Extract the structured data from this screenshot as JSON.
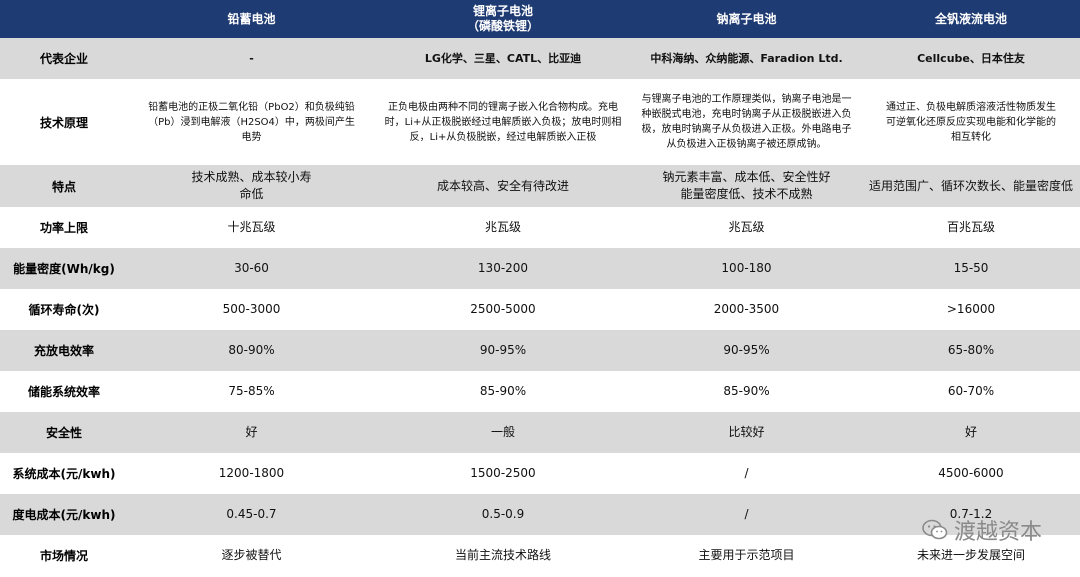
{
  "columns": [
    "",
    "铅蓄电池",
    "锂离子电池",
    "钠离子电池",
    "全钒液流电池"
  ],
  "column_subtitles": [
    "",
    "",
    "（磷酸铁锂）",
    "",
    ""
  ],
  "rows": [
    {
      "label": "代表企业",
      "cells": [
        "-",
        "LG化学、三星、CATL、比亚迪",
        "中科海纳、众纳能源、Faradion Ltd.",
        "Cellcube、日本住友"
      ]
    },
    {
      "label": "技术原理",
      "cells": [
        "铅蓄电池的正极二氧化铅（PbO2）和负极纯铅（Pb）浸到电解液（H2SO4）中，两极间产生电势",
        "正负电极由两种不同的锂离子嵌入化合物构成。充电时，Li+从正极脱嵌经过电解质嵌入负极；放电时则相反，Li+从负极脱嵌，经过电解质嵌入正极",
        "与锂离子电池的工作原理类似，钠离子电池是一种嵌脱式电池，充电时钠离子从正极脱嵌进入负极，放电时钠离子从负极进入正极。外电路电子从负极进入正极钠离子被还原成钠。",
        "通过正、负极电解质溶液活性物质发生可逆氧化还原反应实现电能和化学能的相互转化"
      ]
    },
    {
      "label": "特点",
      "cells": [
        "技术成熟、成本较小寿命低",
        "成本较高、安全有待改进",
        "钠元素丰富、成本低、安全性好能量密度低、技术不成熟",
        "适用范围广、循环次数长、能量密度低"
      ]
    },
    {
      "label": "功率上限",
      "cells": [
        "十兆瓦级",
        "兆瓦级",
        "兆瓦级",
        "百兆瓦级"
      ]
    },
    {
      "label": "能量密度(Wh/kg)",
      "cells": [
        "30-60",
        "130-200",
        "100-180",
        "15-50"
      ]
    },
    {
      "label": "循环寿命(次)",
      "cells": [
        "500-3000",
        "2500-5000",
        "2000-3500",
        ">16000"
      ]
    },
    {
      "label": "充放电效率",
      "cells": [
        "80-90%",
        "90-95%",
        "90-95%",
        "65-80%"
      ]
    },
    {
      "label": "储能系统效率",
      "cells": [
        "75-85%",
        "85-90%",
        "85-90%",
        "60-70%"
      ]
    },
    {
      "label": "安全性",
      "cells": [
        "好",
        "一般",
        "比较好",
        "好"
      ]
    },
    {
      "label": "系统成本(元/kwh)",
      "cells": [
        "1200-1800",
        "1500-2500",
        "/",
        "4500-6000"
      ]
    },
    {
      "label": "度电成本(元/kwh)",
      "cells": [
        "0.45-0.7",
        "0.5-0.9",
        "/",
        "0.7-1.2"
      ]
    },
    {
      "label": "市场情况",
      "cells": [
        "逐步被替代",
        "当前主流技术路线",
        "主要用于示范项目",
        "未来进一步发展空间"
      ]
    }
  ],
  "watermark": "渡越资本",
  "colors": {
    "header_bg": "#1f3b73",
    "stripe": "#d9d9d9"
  }
}
